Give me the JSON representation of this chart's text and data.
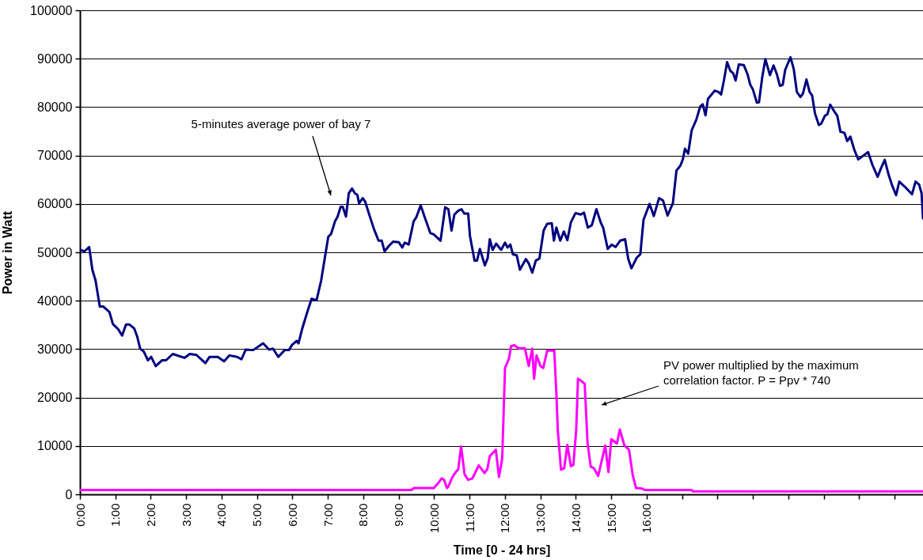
{
  "chart_data": {
    "type": "line",
    "xlabel": "Time [0 - 24 hrs]",
    "ylabel": "Power in Watt",
    "xlim": [
      0,
      23.8
    ],
    "ylim": [
      0,
      100000
    ],
    "xticks": [
      {
        "value": 0,
        "label": "0:00"
      },
      {
        "value": 1,
        "label": "1:00"
      },
      {
        "value": 2,
        "label": "2:00"
      },
      {
        "value": 3,
        "label": "3:00"
      },
      {
        "value": 4,
        "label": "4:00"
      },
      {
        "value": 5,
        "label": "5:00"
      },
      {
        "value": 6,
        "label": "6:00"
      },
      {
        "value": 7,
        "label": "7:00"
      },
      {
        "value": 8,
        "label": "8:00"
      },
      {
        "value": 9,
        "label": "9:00"
      },
      {
        "value": 10,
        "label": "10:00"
      },
      {
        "value": 11,
        "label": "11:00"
      },
      {
        "value": 12,
        "label": "12:00"
      },
      {
        "value": 13,
        "label": "13:00"
      },
      {
        "value": 14,
        "label": "14:00"
      },
      {
        "value": 15,
        "label": "15:00"
      },
      {
        "value": 16,
        "label": "16:00"
      },
      {
        "value": 17,
        "label": null
      },
      {
        "value": 18,
        "label": null
      },
      {
        "value": 19,
        "label": null
      },
      {
        "value": 20,
        "label": null
      },
      {
        "value": 21,
        "label": null
      },
      {
        "value": 22,
        "label": null
      },
      {
        "value": 23,
        "label": null
      }
    ],
    "yticks": [
      0,
      10000,
      20000,
      30000,
      40000,
      50000,
      60000,
      70000,
      80000,
      90000,
      100000
    ],
    "grid": "y",
    "line_style": "solid",
    "series": [
      {
        "color": "#000080",
        "x": [
          0,
          0.13,
          0.26,
          0.35,
          0.44,
          0.56,
          0.66,
          0.83,
          0.93,
          1.08,
          1.19,
          1.3,
          1.39,
          1.53,
          1.62,
          1.7,
          1.8,
          1.92,
          2.01,
          2.14,
          2.32,
          2.43,
          2.62,
          2.95,
          3.1,
          3.29,
          3.54,
          3.66,
          3.89,
          4.07,
          4.22,
          4.44,
          4.56,
          4.68,
          4.89,
          5.17,
          5.34,
          5.45,
          5.6,
          5.78,
          5.9,
          5.99,
          6.12,
          6.17,
          6.27,
          6.42,
          6.54,
          6.68,
          6.81,
          6.9,
          7.01,
          7.09,
          7.2,
          7.27,
          7.36,
          7.42,
          7.51,
          7.59,
          7.68,
          7.76,
          7.83,
          7.88,
          7.98,
          8.05,
          8.18,
          8.3,
          8.43,
          8.52,
          8.6,
          8.72,
          8.84,
          9.0,
          9.1,
          9.17,
          9.28,
          9.42,
          9.5,
          9.62,
          9.73,
          9.89,
          9.99,
          10.18,
          10.31,
          10.4,
          10.49,
          10.57,
          10.68,
          10.77,
          10.85,
          10.96,
          11.01,
          11.14,
          11.21,
          11.29,
          11.43,
          11.51,
          11.57,
          11.65,
          11.75,
          11.89,
          12.0,
          12.07,
          12.15,
          12.22,
          12.33,
          12.42,
          12.59,
          12.67,
          12.77,
          12.87,
          12.97,
          13.09,
          13.19,
          13.32,
          13.38,
          13.45,
          13.56,
          13.66,
          13.76,
          13.86,
          13.99,
          14.14,
          14.23,
          14.34,
          14.45,
          14.58,
          14.7,
          14.77,
          14.9,
          15.01,
          15.12,
          15.25,
          15.39,
          15.48,
          15.57,
          15.72,
          15.82,
          15.91,
          16.08,
          16.2,
          16.35,
          16.46,
          16.59,
          16.74,
          16.84,
          16.95,
          17.02,
          17.08,
          17.17,
          17.27,
          17.4,
          17.51,
          17.58,
          17.66,
          17.73,
          17.92,
          18.03,
          18.1,
          18.18,
          18.27,
          18.36,
          18.44,
          18.51,
          18.6,
          18.74,
          18.85,
          18.92,
          19.0,
          19.11,
          19.17,
          19.26,
          19.35,
          19.48,
          19.58,
          19.67,
          19.76,
          19.84,
          19.91,
          20.06,
          20.15,
          20.24,
          20.34,
          20.41,
          20.51,
          20.6,
          20.67,
          20.75,
          20.86,
          20.93,
          21.03,
          21.1,
          21.18,
          21.27,
          21.38,
          21.47,
          21.58,
          21.66,
          21.75,
          21.86,
          21.97,
          22.12,
          22.25,
          22.37,
          22.52,
          22.61,
          22.72,
          22.83,
          22.92,
          23.04,
          23.13,
          23.28,
          23.49,
          23.59,
          23.69,
          23.76,
          23.8
        ],
        "values": [
          50500,
          50200,
          51100,
          46400,
          44200,
          38800,
          38800,
          37700,
          35200,
          34100,
          32800,
          35100,
          35100,
          34300,
          32500,
          30100,
          29500,
          27700,
          28400,
          26500,
          27700,
          27700,
          29000,
          28200,
          29000,
          28800,
          27100,
          28400,
          28400,
          27500,
          28700,
          28400,
          27900,
          29900,
          29800,
          31200,
          29900,
          30100,
          28400,
          29800,
          29800,
          30900,
          31700,
          31200,
          34100,
          37700,
          40400,
          40100,
          44200,
          48300,
          53200,
          53800,
          56400,
          57300,
          59400,
          59400,
          57400,
          62200,
          63200,
          62200,
          61900,
          60100,
          61200,
          60500,
          57500,
          54800,
          52400,
          52400,
          50200,
          51300,
          52200,
          52100,
          51000,
          52000,
          51600,
          56400,
          57300,
          59700,
          57300,
          54000,
          53700,
          52400,
          59300,
          58900,
          54500,
          57800,
          58600,
          58900,
          58000,
          58000,
          53400,
          48300,
          48300,
          50700,
          47300,
          48800,
          52700,
          50500,
          51800,
          50500,
          52000,
          51000,
          51600,
          49600,
          49400,
          46400,
          48600,
          47700,
          45800,
          48300,
          48700,
          54500,
          55900,
          56000,
          52400,
          55100,
          52400,
          54300,
          52500,
          56200,
          58100,
          57800,
          58200,
          55100,
          55600,
          58900,
          56200,
          55100,
          50700,
          51600,
          51100,
          52400,
          52700,
          48600,
          46700,
          48900,
          49600,
          56700,
          60000,
          57500,
          61200,
          60700,
          57600,
          60200,
          66900,
          67900,
          69200,
          71400,
          70400,
          75200,
          77400,
          80100,
          80600,
          78300,
          81700,
          83400,
          83100,
          82600,
          85500,
          89300,
          87500,
          87000,
          85500,
          88800,
          88700,
          86700,
          84700,
          83600,
          80900,
          81000,
          86100,
          89900,
          86600,
          88600,
          86900,
          84400,
          84600,
          87700,
          90300,
          87900,
          83100,
          82100,
          82800,
          85700,
          83100,
          82400,
          78700,
          76300,
          76600,
          78200,
          78500,
          80500,
          79400,
          78200,
          74900,
          74700,
          73000,
          73900,
          71200,
          69200,
          70000,
          70700,
          68100,
          65600,
          67300,
          69100,
          66000,
          64000,
          61800,
          64600,
          63600,
          62000,
          64600,
          64000,
          62200,
          57000
        ]
      },
      {
        "color": "#ff00ff",
        "x": [
          0,
          9.36,
          9.43,
          9.99,
          10.1,
          10.21,
          10.28,
          10.36,
          10.4,
          10.51,
          10.59,
          10.68,
          10.76,
          10.86,
          10.96,
          11.08,
          11.26,
          11.42,
          11.5,
          11.57,
          11.74,
          11.83,
          11.92,
          12.0,
          12.11,
          12.17,
          12.26,
          12.39,
          12.56,
          12.67,
          12.77,
          12.82,
          12.89,
          13.0,
          13.08,
          13.19,
          13.39,
          13.45,
          13.49,
          13.58,
          13.67,
          13.76,
          13.86,
          13.93,
          14.01,
          14.06,
          14.16,
          14.25,
          14.33,
          14.42,
          14.51,
          14.63,
          14.83,
          14.92,
          15.0,
          15.16,
          15.24,
          15.37,
          15.5,
          15.61,
          15.7,
          15.87,
          15.94,
          17.27,
          17.3,
          23.8
        ],
        "values": [
          900,
          900,
          1300,
          1300,
          2200,
          3300,
          3000,
          1300,
          1600,
          3500,
          4400,
          5200,
          9900,
          4100,
          3000,
          3300,
          6000,
          4400,
          5200,
          7900,
          9200,
          3600,
          7300,
          26100,
          28000,
          30600,
          30800,
          30200,
          30200,
          26500,
          30100,
          23900,
          28700,
          26500,
          26100,
          29700,
          29700,
          20900,
          13300,
          5100,
          5400,
          10200,
          5800,
          6100,
          13300,
          23900,
          23400,
          22800,
          10600,
          5700,
          5400,
          3800,
          10100,
          4600,
          11400,
          10500,
          13400,
          10100,
          9200,
          3800,
          1300,
          1200,
          900,
          900,
          600,
          600
        ]
      }
    ],
    "annotations": [
      "5-minutes average power of bay 7",
      "PV power multiplied by the maximum\ncorrelation factor. P = Ppv * 740"
    ]
  }
}
